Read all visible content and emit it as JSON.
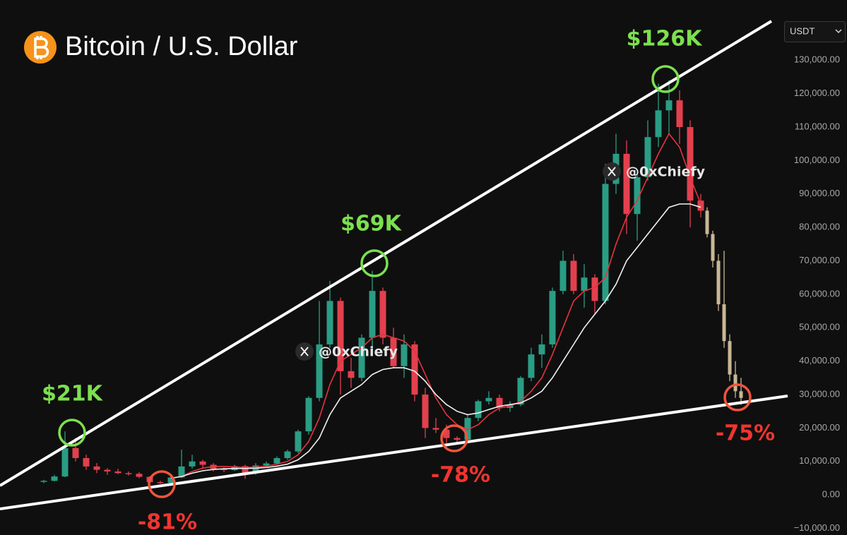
{
  "chart_data": {
    "type": "candlestick",
    "title": "Bitcoin / U.S. Dollar",
    "currency": "USDT",
    "watermark": "@0xChiefy",
    "ylim": [
      -12000,
      148000
    ],
    "yticks": [
      {
        "value": -10000,
        "label": "−10,000.00"
      },
      {
        "value": 0,
        "label": "0.00"
      },
      {
        "value": 10000,
        "label": "10,000.00"
      },
      {
        "value": 20000,
        "label": "20,000.00"
      },
      {
        "value": 30000,
        "label": "30,000.00"
      },
      {
        "value": 40000,
        "label": "40,000.00"
      },
      {
        "value": 50000,
        "label": "50,000.00"
      },
      {
        "value": 60000,
        "label": "60,000.00"
      },
      {
        "value": 70000,
        "label": "70,000.00"
      },
      {
        "value": 80000,
        "label": "80,000.00"
      },
      {
        "value": 90000,
        "label": "90,000.00"
      },
      {
        "value": 100000,
        "label": "100,000.00"
      },
      {
        "value": 110000,
        "label": "110,000.00"
      },
      {
        "value": 120000,
        "label": "120,000.00"
      },
      {
        "value": 130000,
        "label": "130,000.00"
      }
    ],
    "up_color": "#2a9d84",
    "down_color": "#e3404e",
    "candles": {
      "open": [
        4000,
        4200,
        5500,
        14000,
        11000,
        8500,
        7500,
        7000,
        6500,
        6300,
        5400,
        3800,
        3600,
        5200,
        8500,
        10000,
        9000,
        7800,
        7400,
        8600,
        6500,
        8800,
        9400,
        11000,
        13000,
        19000,
        29000,
        45000,
        58000,
        37000,
        35000,
        47000,
        61000,
        47000,
        38500,
        45000,
        30000,
        20000,
        19500,
        17000,
        16500,
        23000,
        28000,
        29000,
        26000,
        27000,
        35000,
        42000,
        45000,
        61000,
        70000,
        61000,
        65000,
        58000,
        93000,
        102000,
        84000,
        95000,
        107000,
        115000,
        118000,
        110000,
        88000
      ],
      "high": [
        4500,
        6000,
        19000,
        17000,
        12000,
        9500,
        8000,
        7800,
        7000,
        6800,
        5600,
        4200,
        5500,
        13500,
        12000,
        10500,
        9500,
        8200,
        9000,
        9000,
        9500,
        10000,
        11500,
        13500,
        19500,
        29500,
        58000,
        64000,
        59000,
        41000,
        48000,
        67000,
        62000,
        50000,
        48000,
        46000,
        32000,
        23000,
        21000,
        17500,
        24000,
        28500,
        31000,
        30000,
        28000,
        35500,
        44000,
        48000,
        62000,
        73000,
        72000,
        69000,
        66000,
        99000,
        108000,
        106000,
        97000,
        112000,
        123000,
        124000,
        121000,
        112000,
        90000
      ],
      "low": [
        3500,
        4000,
        5300,
        10000,
        7500,
        6500,
        6000,
        6200,
        5800,
        5000,
        3200,
        3300,
        3400,
        5000,
        7800,
        8000,
        7000,
        6800,
        7200,
        4800,
        6000,
        8500,
        9000,
        10500,
        12500,
        18000,
        28000,
        44000,
        30000,
        32000,
        34000,
        43000,
        45000,
        38000,
        35000,
        28000,
        17000,
        18500,
        15500,
        15800,
        16300,
        22000,
        27000,
        25000,
        24800,
        26500,
        34000,
        38000,
        44000,
        60000,
        60000,
        56000,
        54000,
        57000,
        90000,
        78000,
        76000,
        94000,
        104000,
        108000,
        105000,
        80000,
        83000
      ],
      "close": [
        4200,
        5500,
        14000,
        11000,
        8500,
        7500,
        7000,
        6500,
        6300,
        5400,
        3800,
        3600,
        5200,
        8500,
        10000,
        9000,
        7800,
        7400,
        8600,
        6500,
        8800,
        9400,
        11000,
        13000,
        19000,
        29000,
        45000,
        58000,
        37000,
        35000,
        47000,
        61000,
        47000,
        38500,
        45000,
        30000,
        20000,
        19500,
        17000,
        16500,
        23000,
        28000,
        29000,
        26000,
        27000,
        35000,
        42000,
        45000,
        61000,
        70000,
        61000,
        65000,
        58000,
        93000,
        102000,
        84000,
        95000,
        107000,
        115000,
        118000,
        110000,
        88000,
        85000
      ]
    },
    "projection": {
      "color": "#c9b795",
      "open": [
        85000,
        78000,
        70000,
        57000,
        46000,
        36000,
        31000
      ],
      "high": [
        86000,
        79000,
        72000,
        73000,
        48000,
        40000,
        35000
      ],
      "low": [
        77000,
        68000,
        55000,
        44000,
        34000,
        29000,
        27000
      ],
      "close": [
        78000,
        70000,
        57000,
        46000,
        36000,
        31000,
        29000
      ]
    },
    "moving_averages": [
      {
        "color": "#e8323f",
        "values": [
          null,
          null,
          null,
          null,
          null,
          null,
          null,
          null,
          null,
          null,
          null,
          null,
          5000,
          5500,
          7000,
          8000,
          8500,
          8500,
          8400,
          8200,
          8300,
          8600,
          9200,
          10000,
          12000,
          16000,
          23000,
          33000,
          40000,
          42000,
          44000,
          47000,
          48000,
          47000,
          46000,
          43000,
          36000,
          29000,
          24000,
          21000,
          19500,
          21000,
          24000,
          26000,
          26500,
          28000,
          31000,
          35000,
          42000,
          50000,
          58000,
          61000,
          62000,
          65000,
          75000,
          83000,
          88000,
          95000,
          102000,
          108000,
          104000,
          95000,
          87000
        ]
      },
      {
        "color": "#f2f2f2",
        "values": [
          null,
          null,
          null,
          null,
          null,
          null,
          null,
          null,
          null,
          null,
          null,
          null,
          5000,
          5500,
          6500,
          7200,
          7600,
          7800,
          7900,
          7900,
          8000,
          8200,
          8600,
          9200,
          10500,
          13000,
          17000,
          24000,
          29000,
          31000,
          33000,
          36000,
          37500,
          38000,
          38000,
          37000,
          34000,
          30000,
          27000,
          25000,
          24000,
          24500,
          25500,
          26500,
          27000,
          27500,
          29000,
          31000,
          35000,
          40000,
          45000,
          50000,
          54000,
          58000,
          63000,
          70000,
          74000,
          78000,
          82000,
          86000,
          87000,
          87000,
          86000
        ]
      }
    ],
    "annotations": [
      {
        "text": "$21K",
        "color": "#7be04f"
      },
      {
        "text": "$69K",
        "color": "#7be04f"
      },
      {
        "text": "$126K",
        "color": "#7be04f"
      },
      {
        "text": "-81%",
        "color": "#f0352f"
      },
      {
        "text": "-78%",
        "color": "#f0352f"
      },
      {
        "text": "-75%",
        "color": "#f0352f"
      }
    ]
  }
}
